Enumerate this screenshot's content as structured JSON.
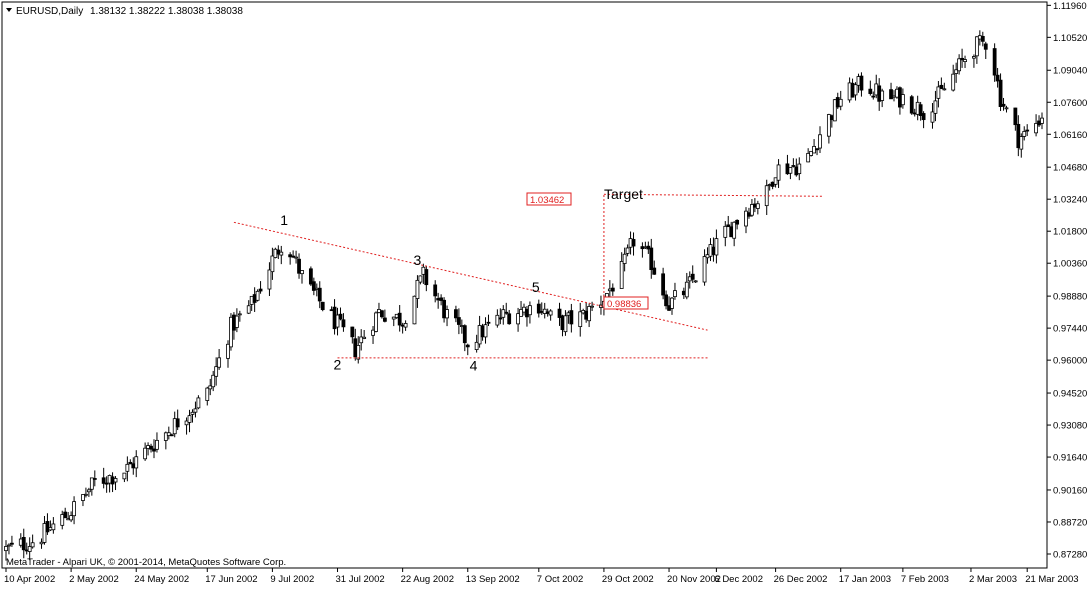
{
  "header": {
    "symbol": "EURUSD,Daily",
    "ohlc": "1.38132 1.38222 1.38038 1.38038"
  },
  "footer": {
    "copyright": "MetaTrader - Alpari UK, © 2001-2014, MetaQuotes Software Corp."
  },
  "annotations": {
    "target_label": "Target",
    "target_price": "1.03462",
    "breakout_price": "0.98836",
    "points": [
      "1",
      "2",
      "3",
      "4",
      "5"
    ]
  },
  "colors": {
    "up_candle": "#000000",
    "down_candle": "#000000",
    "up_body_fill": "#ffffff",
    "pattern_lines": "#e02020",
    "grid": "#c0c0c0",
    "axis": "#000000"
  },
  "chart_data": {
    "type": "candlestick",
    "title": "EURUSD,Daily",
    "ylim": [
      0.8665,
      1.1211
    ],
    "y_ticks": [
      "1.11960",
      "1.10520",
      "1.09040",
      "1.07600",
      "1.06160",
      "1.04680",
      "1.03240",
      "1.01800",
      "1.00360",
      "0.98880",
      "0.97440",
      "0.96000",
      "0.94520",
      "0.93080",
      "0.91640",
      "0.90160",
      "0.88720",
      "0.87280"
    ],
    "x_ticks": [
      "10 Apr 2002",
      "2 May 2002",
      "24 May 2002",
      "17 Jun 2002",
      "9 Jul 2002",
      "31 Jul 2002",
      "22 Aug 2002",
      "13 Sep 2002",
      "7 Oct 2002",
      "29 Oct 2002",
      "20 Nov 2002",
      "6 Dec 2002",
      "26 Dec 2002",
      "17 Jan 2003",
      "7 Feb 2003",
      "2 Mar 2003",
      "21 Mar 2003"
    ],
    "x_range": [
      "10 Apr 2002",
      "26 Mar 2003"
    ],
    "close_path": [
      [
        "10 Apr 2002",
        0.8748
      ],
      [
        "20 Apr 2002",
        0.879
      ],
      [
        "2 May 2002",
        0.892
      ],
      [
        "10 May 2002",
        0.905
      ],
      [
        "20 May 2002",
        0.91
      ],
      [
        "24 May 2002",
        0.915
      ],
      [
        "5 Jun 2002",
        0.93
      ],
      [
        "17 Jun 2002",
        0.945
      ],
      [
        "25 Jun 2002",
        0.975
      ],
      [
        "2 Jul 2002",
        0.985
      ],
      [
        "9 Jul 2002",
        1.005
      ],
      [
        "13 Jul 2002",
        1.015
      ],
      [
        "20 Jul 2002",
        0.995
      ],
      [
        "31 Jul 2002",
        0.976
      ],
      [
        "6 Aug 2002",
        0.965
      ],
      [
        "14 Aug 2002",
        0.982
      ],
      [
        "22 Aug 2002",
        0.978
      ],
      [
        "29 Aug 2002",
        0.998
      ],
      [
        "6 Sep 2002",
        0.98
      ],
      [
        "13 Sep 2002",
        0.968
      ],
      [
        "25 Sep 2002",
        0.98
      ],
      [
        "7 Oct 2002",
        0.985
      ],
      [
        "13 Oct 2002",
        0.976
      ],
      [
        "22 Oct 2002",
        0.98
      ],
      [
        "29 Oct 2002",
        0.988
      ],
      [
        "4 Nov 2002",
        1.0
      ],
      [
        "8 Nov 2002",
        1.014
      ],
      [
        "14 Nov 2002",
        1.004
      ],
      [
        "20 Nov 2002",
        0.985
      ],
      [
        "26 Nov 2002",
        0.992
      ],
      [
        "6 Dec 2002",
        1.012
      ],
      [
        "16 Dec 2002",
        1.028
      ],
      [
        "23 Dec 2002",
        1.035
      ],
      [
        "26 Dec 2002",
        1.046
      ],
      [
        "5 Jan 2003",
        1.048
      ],
      [
        "10 Jan 2003",
        1.062
      ],
      [
        "17 Jan 2003",
        1.078
      ],
      [
        "25 Jan 2003",
        1.085
      ],
      [
        "31 Jan 2003",
        1.078
      ],
      [
        "7 Feb 2003",
        1.078
      ],
      [
        "14 Feb 2003",
        1.072
      ],
      [
        "20 Feb 2003",
        1.08
      ],
      [
        "2 Mar 2003",
        1.1
      ],
      [
        "8 Mar 2003",
        1.104
      ],
      [
        "12 Mar 2003",
        1.078
      ],
      [
        "18 Mar 2003",
        1.06
      ],
      [
        "21 Mar 2003",
        1.062
      ],
      [
        "26 Mar 2003",
        1.07
      ]
    ],
    "lines": [
      {
        "kind": "upper-trendline",
        "from": [
          "26 Jun 2002",
          1.022
        ],
        "to": [
          "3 Dec 2002",
          0.9735
        ]
      },
      {
        "kind": "support",
        "from": [
          "31 Jul 2002",
          0.961
        ],
        "to": [
          "3 Dec 2002",
          0.961
        ]
      },
      {
        "kind": "target",
        "from": [
          "29 Oct 2002",
          1.0346
        ],
        "to": [
          "11 Jan 2003",
          1.0337
        ]
      },
      {
        "kind": "projection",
        "from": [
          "29 Oct 2002",
          0.9884
        ],
        "to": [
          "29 Oct 2002",
          1.0346
        ]
      }
    ],
    "points": [
      {
        "label": "1",
        "x": "13 Jul 2002",
        "y": 1.023
      },
      {
        "label": "2",
        "x": "31 Jul 2002",
        "y": 0.958
      },
      {
        "label": "3",
        "x": "27 Aug 2002",
        "y": 1.005
      },
      {
        "label": "4",
        "x": "15 Sep 2002",
        "y": 0.9575
      },
      {
        "label": "5",
        "x": "6 Oct 2002",
        "y": 0.993
      }
    ]
  }
}
